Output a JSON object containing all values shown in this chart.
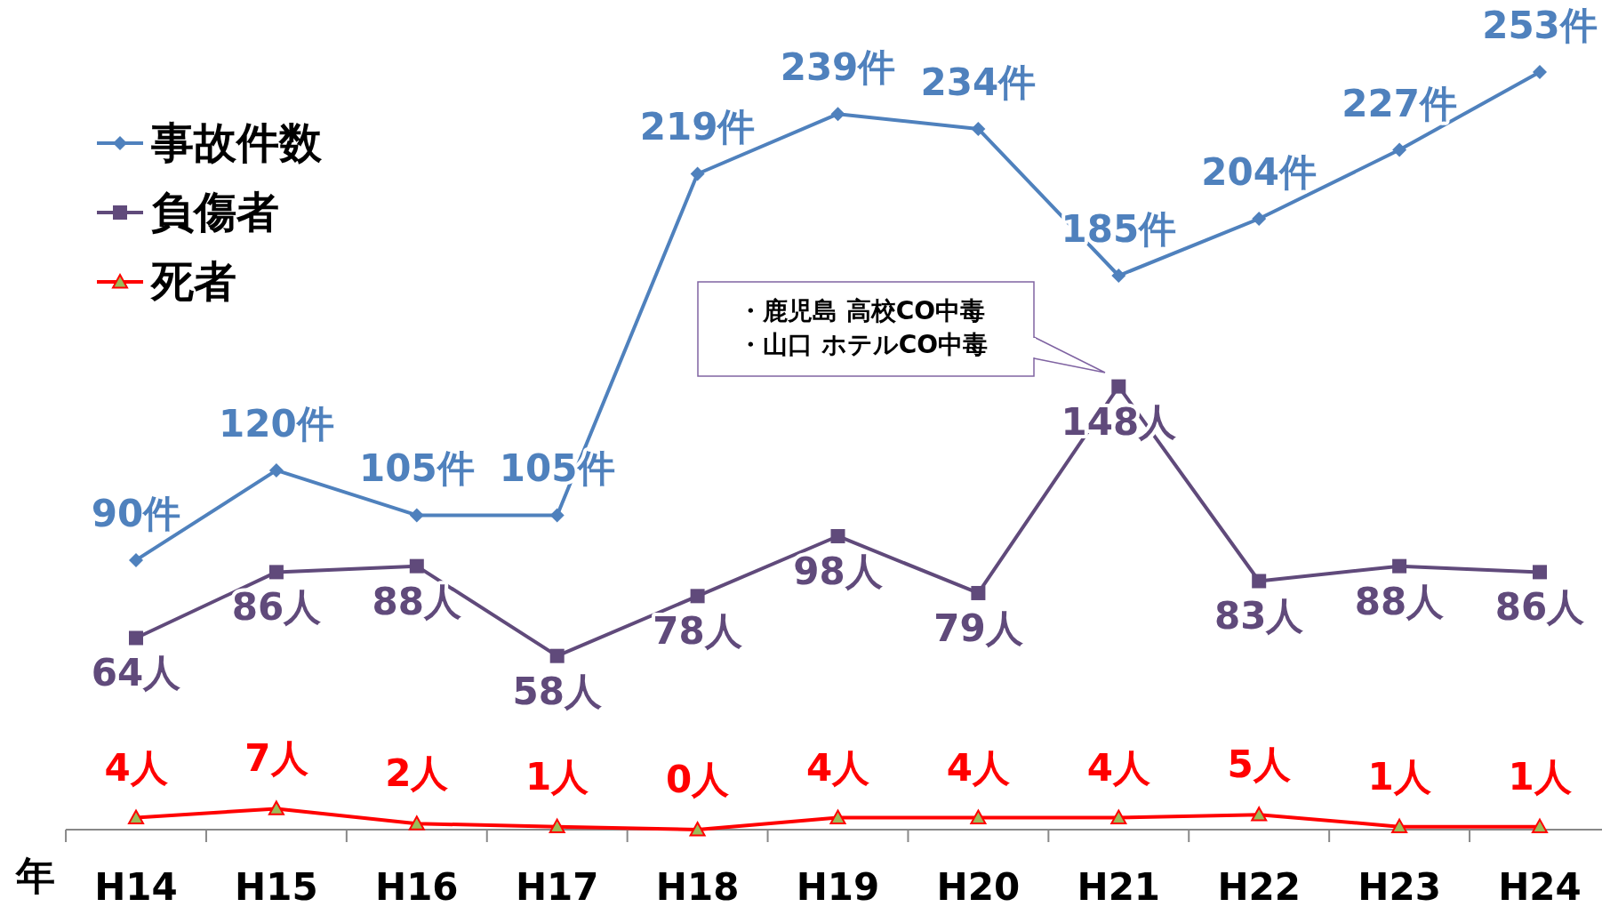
{
  "chart_data": {
    "type": "line",
    "xlabel": "年",
    "legend": "top left",
    "categories": [
      "H14",
      "H15",
      "H16",
      "H17",
      "H18",
      "H19",
      "H20",
      "H21",
      "H22",
      "H23",
      "H24"
    ],
    "series": [
      {
        "name": "事故件数",
        "color": "#4f81bd",
        "marker": "diamond",
        "values": [
          90,
          120,
          105,
          105,
          219,
          239,
          234,
          185,
          204,
          227,
          253
        ],
        "value_labels": [
          "90件",
          "120件",
          "105件",
          "105件",
          "219件",
          "239件",
          "234件",
          "185件",
          "204件",
          "227件",
          "253件"
        ]
      },
      {
        "name": "負傷者",
        "color": "#604a7b",
        "marker": "square",
        "values": [
          64,
          86,
          88,
          58,
          78,
          98,
          79,
          148,
          83,
          88,
          86
        ],
        "value_labels": [
          "64人",
          "86人",
          "88人",
          "58人",
          "78人",
          "98人",
          "79人",
          "148人",
          "83人",
          "88人",
          "86人"
        ]
      },
      {
        "name": "死者",
        "color": "#ff0000",
        "marker": "triangle",
        "values": [
          4,
          7,
          2,
          1,
          0,
          4,
          4,
          4,
          5,
          1,
          1
        ],
        "value_labels": [
          "4人",
          "7人",
          "2人",
          "1人",
          "0人",
          "4人",
          "4人",
          "4人",
          "5人",
          "1人",
          "1人"
        ]
      }
    ],
    "annotations": [
      "・鹿児島 高校CO中毒",
      "・山口 ホテルCO中毒"
    ]
  }
}
